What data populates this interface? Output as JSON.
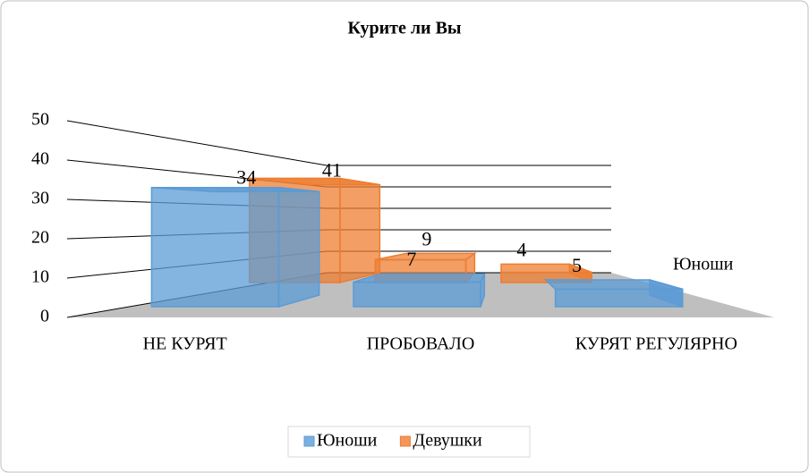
{
  "chart_data": {
    "type": "bar3d",
    "title": "Курите ли Вы",
    "categories": [
      "НЕ КУРЯТ",
      "ПРОБОВАЛО",
      "КУРЯТ РЕГУЛЯРНО"
    ],
    "series": [
      {
        "name": "Юноши",
        "color": "#5b9bd5",
        "values": [
          34,
          7,
          5
        ]
      },
      {
        "name": "Девушки",
        "color": "#ed7d31",
        "values": [
          41,
          9,
          4
        ]
      }
    ],
    "ylim": [
      0,
      50
    ],
    "yticks": [
      0,
      10,
      20,
      30,
      40,
      50
    ],
    "grid": true,
    "legend": "bottom"
  }
}
